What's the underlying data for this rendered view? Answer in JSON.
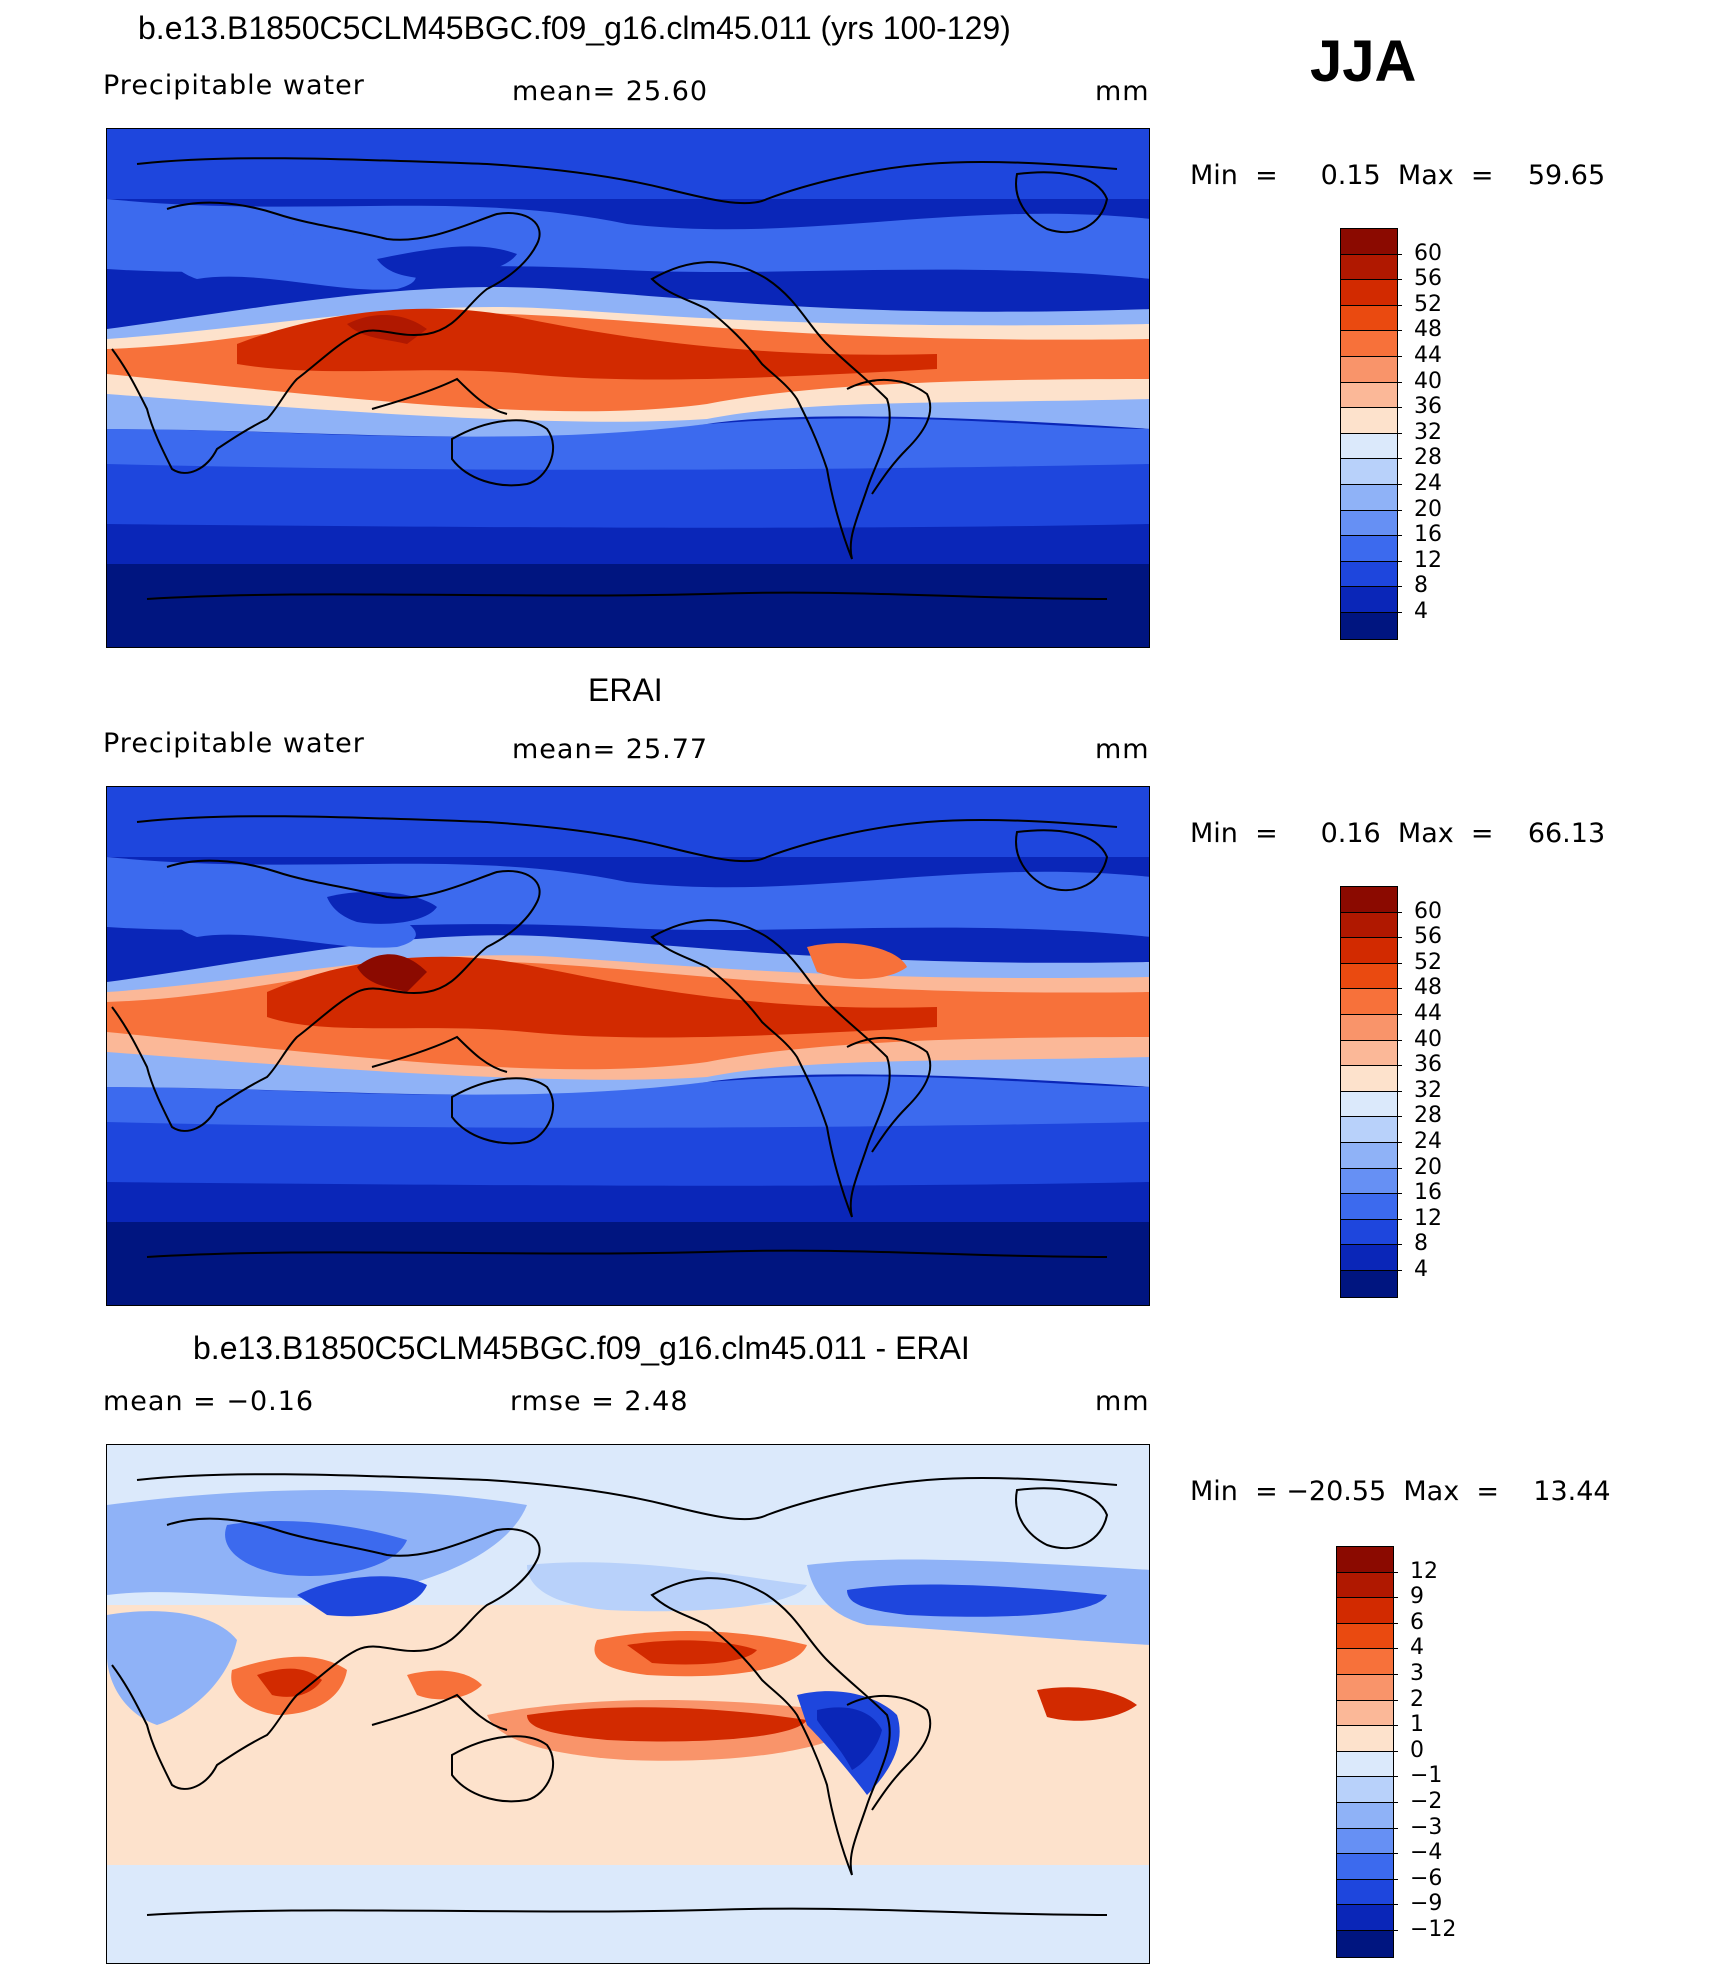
{
  "season": "JJA",
  "panels": [
    {
      "title": "b.e13.B1850C5CLM45BGC.f09_g16.clm45.011 (yrs 100-129)",
      "left_label": "Precipitable  water",
      "center_label": "mean=   25.60",
      "units": "mm",
      "minmax": "Min  =     0.15  Max  =    59.65",
      "type": "abs"
    },
    {
      "title": "ERAI",
      "left_label": "Precipitable  water",
      "center_label": "mean=   25.77",
      "units": "mm",
      "minmax": "Min  =     0.16  Max  =    66.13",
      "type": "abs"
    },
    {
      "title": "b.e13.B1850C5CLM45BGC.f09_g16.clm45.011 - ERAI",
      "left_label": "mean  =    −0.16",
      "center_label": "rmse  =     2.48",
      "units": "mm",
      "minmax": "Min  = −20.55  Max  =    13.44",
      "type": "diff"
    }
  ],
  "colorbars": {
    "abs": {
      "labels": [
        "60",
        "56",
        "52",
        "48",
        "44",
        "40",
        "36",
        "32",
        "28",
        "24",
        "20",
        "16",
        "12",
        "8",
        "4"
      ],
      "colors": [
        "#8b0a00",
        "#b01800",
        "#d22a00",
        "#ea4a10",
        "#f7713a",
        "#f9946a",
        "#fbb898",
        "#fde2cc",
        "#dbe9fb",
        "#b8d1fa",
        "#8fb2f7",
        "#6690f4",
        "#3c6aee",
        "#1e46dd",
        "#0a26b8",
        "#001580"
      ]
    },
    "diff": {
      "labels": [
        "12",
        "9",
        "6",
        "4",
        "3",
        "2",
        "1",
        "0",
        "−1",
        "−2",
        "−3",
        "−4",
        "−6",
        "−9",
        "−12"
      ],
      "colors": [
        "#8b0a00",
        "#b01800",
        "#d22a00",
        "#ea4a10",
        "#f7713a",
        "#f9946a",
        "#fbb898",
        "#fde2cc",
        "#dbe9fb",
        "#b8d1fa",
        "#8fb2f7",
        "#6690f4",
        "#3c6aee",
        "#1e46dd",
        "#0a26b8",
        "#001580"
      ]
    }
  }
}
